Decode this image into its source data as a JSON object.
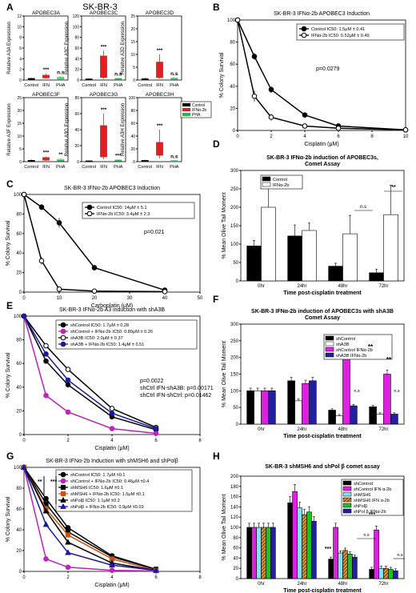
{
  "figure_title": "SK-BR-3",
  "chart_data": [
    {
      "panel": "A",
      "type": "box",
      "legend": [
        {
          "name": "Control",
          "color": "#000000"
        },
        {
          "name": "IFNα-2b",
          "color": "#e02020"
        },
        {
          "name": "PHA",
          "color": "#2bb24c"
        }
      ],
      "subplots": [
        {
          "title": "APOBEC3A",
          "ylabel": "Relative A3A Expression",
          "ylim": [
            0,
            12
          ],
          "yticks": [
            "0",
            "2",
            "4",
            "6",
            "8",
            "10",
            "12"
          ],
          "categories": [
            "Control",
            "IFN",
            "PHA"
          ],
          "medians": [
            0.2,
            0.6,
            0.3
          ],
          "q1": [
            0.1,
            0.4,
            0.2
          ],
          "q3": [
            0.3,
            0.9,
            0.5
          ],
          "max": [
            0.4,
            1.2,
            0.7
          ],
          "min": [
            0.1,
            0.3,
            0.1
          ],
          "annotations": [
            "",
            "***",
            "n.s"
          ]
        },
        {
          "title": "APOBEC3C",
          "ylabel": "Relative A3C Expression",
          "ylim": [
            0,
            120
          ],
          "yticks": [
            "0",
            "20",
            "40",
            "60",
            "80",
            "100",
            "120"
          ],
          "categories": [
            "Control",
            "IFN",
            "PHA"
          ],
          "medians": [
            1,
            10,
            2
          ],
          "q1": [
            0.5,
            5,
            1
          ],
          "q3": [
            2,
            45,
            3
          ],
          "max": [
            3,
            55,
            4
          ],
          "min": [
            0.2,
            2,
            0.5
          ],
          "annotations": [
            "",
            "***",
            "n.s"
          ]
        },
        {
          "title": "APOBEC3D",
          "ylabel": "Relative A3D Expression",
          "ylim": [
            0,
            25
          ],
          "yticks": [
            "0",
            "5",
            "10",
            "15",
            "20",
            "25"
          ],
          "categories": [
            "Control",
            "IFN",
            "PHA"
          ],
          "medians": [
            0.3,
            2,
            0.4
          ],
          "q1": [
            0.1,
            1,
            0.2
          ],
          "q3": [
            0.5,
            7,
            0.7
          ],
          "max": [
            0.8,
            10,
            1
          ],
          "min": [
            0.1,
            0.5,
            0.1
          ],
          "annotations": [
            "",
            "***",
            "n.s"
          ]
        },
        {
          "title": "APOBEC3F",
          "ylabel": "Relative A3F Expression",
          "ylim": [
            0,
            25
          ],
          "yticks": [
            "0",
            "5",
            "10",
            "15",
            "20",
            "25"
          ],
          "categories": [
            "Control",
            "IFN",
            "PHA"
          ],
          "medians": [
            0.3,
            1,
            0.5
          ],
          "q1": [
            0.1,
            0.6,
            0.3
          ],
          "q3": [
            0.5,
            1.6,
            0.9
          ],
          "max": [
            0.8,
            2,
            1.2
          ],
          "min": [
            0.1,
            0.3,
            0.2
          ],
          "annotations": [
            "",
            "***",
            "**"
          ]
        },
        {
          "title": "APOBEC3G",
          "ylabel": "Relative A3G Expression",
          "ylim": [
            0,
            80
          ],
          "yticks": [
            "0",
            "20",
            "40",
            "60",
            "80"
          ],
          "categories": [
            "Control",
            "IFN",
            "PHA"
          ],
          "medians": [
            0.5,
            10,
            1.5
          ],
          "q1": [
            0.3,
            6,
            1
          ],
          "q3": [
            1,
            45,
            2
          ],
          "max": [
            1.5,
            60,
            2.5
          ],
          "min": [
            0.1,
            3,
            0.5
          ],
          "annotations": [
            "",
            "***",
            "***"
          ]
        },
        {
          "title": "APOBEC3H",
          "ylabel": "Relative A3H Expression",
          "ylim": [
            0,
            100
          ],
          "yticks": [
            "0",
            "20",
            "40",
            "60",
            "80",
            "100"
          ],
          "categories": [
            "Control",
            "IFN",
            "PHA"
          ],
          "medians": [
            1,
            25,
            1
          ],
          "q1": [
            0.5,
            10,
            0.5
          ],
          "q3": [
            2,
            30,
            1.5
          ],
          "max": [
            3,
            50,
            2
          ],
          "min": [
            0.2,
            5,
            0.3
          ],
          "annotations": [
            "",
            "***",
            "n.s"
          ]
        }
      ]
    },
    {
      "panel": "B",
      "type": "line",
      "title": "SK-BR-3  IFNα-2b APOBEC3 Induction",
      "xlabel": "Cisplatin (μM)",
      "ylabel": "% Colony Survival",
      "xlim": [
        0,
        10
      ],
      "ylim": [
        0,
        100
      ],
      "xticks": [
        0,
        2,
        4,
        6,
        8,
        10
      ],
      "yticks": [
        0,
        20,
        40,
        60,
        80,
        100
      ],
      "x": [
        0,
        1,
        2,
        4,
        6,
        10
      ],
      "series": [
        {
          "name": "Control IC50: 1.5μM ± 0.41",
          "marker": "filled",
          "values": [
            100,
            67,
            37,
            14,
            4,
            0.5
          ],
          "err": [
            0,
            3,
            3,
            2,
            1,
            0
          ]
        },
        {
          "name": "IFNα-2b IC50: 0.52μM ± 0.49",
          "marker": "open",
          "values": [
            100,
            31,
            12,
            4,
            2,
            0.5
          ],
          "err": [
            0,
            5,
            3,
            1,
            1,
            0
          ]
        }
      ],
      "annotations": [
        "p=0.0279"
      ]
    },
    {
      "panel": "C",
      "type": "line",
      "title": "SK-BR-3 IFNα-2b APOBEC3 Induction",
      "xlabel": "Carboplatin (μM)",
      "ylabel": "% Colony Survival",
      "xlim": [
        0,
        50
      ],
      "ylim": [
        0,
        100
      ],
      "xticks": [
        0,
        10,
        20,
        30,
        40,
        50
      ],
      "yticks": [
        0,
        20,
        40,
        60,
        80,
        100
      ],
      "x": [
        0,
        5,
        10,
        20,
        40
      ],
      "series": [
        {
          "name": "Control IC50: 14μM ± 5.1",
          "marker": "filled",
          "values": [
            100,
            87,
            71,
            25,
            2
          ],
          "err": [
            0,
            3,
            5,
            3,
            1
          ]
        },
        {
          "name": "IFNα-2b IC50: 3.4μM ± 2.3",
          "marker": "open",
          "values": [
            100,
            32,
            3,
            1,
            0.5
          ],
          "err": [
            0,
            4,
            1,
            0,
            0
          ]
        }
      ],
      "annotations": [
        "p=0.021"
      ]
    },
    {
      "panel": "D",
      "type": "bar",
      "title": "SK-BR-3 IFNα-2b induction of APOBEC3s,\nComet Assay",
      "xlabel": "Time post-cisplatin treatment",
      "ylabel": "% Mean Olive Tail Moment",
      "ylim": [
        0,
        300
      ],
      "yticks": [
        0,
        50,
        100,
        150,
        200,
        250,
        300
      ],
      "categories": [
        "0hr",
        "24hr",
        "48hr",
        "72hr"
      ],
      "series": [
        {
          "name": "Control",
          "color": "#000000",
          "values": [
            95,
            122,
            40,
            22
          ],
          "err": [
            15,
            30,
            8,
            10
          ]
        },
        {
          "name": "IFNα-2b",
          "color": "#ffffff",
          "values": [
            200,
            137,
            128,
            180
          ],
          "err": [
            70,
            20,
            50,
            80
          ]
        }
      ],
      "annotations": [
        {
          "category": "48hr",
          "text": "n.s"
        },
        {
          "category": "72hr",
          "text": "**"
        }
      ]
    },
    {
      "panel": "E",
      "type": "line",
      "title": "SK-BR-3 IFNα-2b A3 induction with shA3B",
      "xlabel": "Cisplatin (μM)",
      "ylabel": "% Colony Survival",
      "xlim": [
        0,
        8
      ],
      "ylim": [
        0,
        100
      ],
      "xticks": [
        0,
        2,
        4,
        6,
        8
      ],
      "yticks": [
        0,
        20,
        40,
        60,
        80,
        100
      ],
      "x": [
        0,
        1,
        2,
        4,
        6
      ],
      "series": [
        {
          "name": "shControl IC50: 1.7μM ± 0.28",
          "color": "#000000",
          "marker": "filled",
          "values": [
            100,
            62,
            42,
            15,
            4
          ]
        },
        {
          "name": "shControl + IFNα-2b IC50: 0.89μM ± 0.26",
          "color": "#c020c0",
          "marker": "filled",
          "values": [
            100,
            33,
            19,
            5,
            1
          ]
        },
        {
          "name": "shA3B IC50: 2.0μM ± 0.37",
          "color": "#000000",
          "marker": "open",
          "values": [
            100,
            75,
            55,
            22,
            6
          ]
        },
        {
          "name": "shA3B + IFNα-2b IC50: 1.4μM ± 0.51",
          "color": "#1a1aa0",
          "marker": "filled",
          "values": [
            100,
            68,
            46,
            18,
            5
          ]
        }
      ],
      "annotations": [
        "p=0.0022",
        "shCtrl IFN-shA3B: p=0.00171",
        "shCtrl IFN-shCtrl: p=0.01462"
      ]
    },
    {
      "panel": "F",
      "type": "bar",
      "title": "SK-BR-3 IFNα-2b induction of APOBEC3s with shA3B\nComet Assay",
      "xlabel": "Time post-cisplatin treatment",
      "ylabel": "% Mean Olive Tail Moment",
      "ylim": [
        0,
        300
      ],
      "yticks": [
        0,
        50,
        100,
        150,
        200,
        250,
        300
      ],
      "categories": [
        "0hr",
        "24hr",
        "48hr",
        "72hr"
      ],
      "series": [
        {
          "name": "shControl",
          "color": "#000000",
          "values": [
            100,
            130,
            42,
            52
          ]
        },
        {
          "name": "shA3B",
          "color": "#ffffff",
          "values": [
            100,
            70,
            25,
            30
          ]
        },
        {
          "name": "shControl IFNα-2b",
          "color": "#e020e0",
          "values": [
            100,
            122,
            207,
            150
          ]
        },
        {
          "name": "shA3B IFNα-2b",
          "color": "#2020a0",
          "values": [
            100,
            130,
            55,
            30
          ]
        }
      ],
      "annotations": [
        {
          "category": "48hr",
          "text": "**"
        },
        {
          "category": "48hr",
          "text": "n.s"
        },
        {
          "category": "72hr",
          "text": "**"
        },
        {
          "category": "72hr",
          "text": "n.s"
        }
      ]
    },
    {
      "panel": "G",
      "type": "line",
      "title": "SK-BR-3 IFNα-2b Induction with shMSH6 and shPolβ",
      "xlabel": "Cisplatin (μM)",
      "ylabel": "% Colony Survival",
      "xlim": [
        0,
        8
      ],
      "ylim": [
        0,
        100
      ],
      "xticks": [
        0,
        2,
        4,
        6,
        8
      ],
      "yticks": [
        0,
        20,
        40,
        60,
        80,
        100
      ],
      "x": [
        0,
        1,
        2,
        4,
        6
      ],
      "series": [
        {
          "name": "shControl IC50: 1.7μM ±0.1",
          "color": "#000000",
          "marker": "circle",
          "values": [
            100,
            70,
            42,
            15,
            2
          ]
        },
        {
          "name": "shControl + IFNα-2b IC50: 0.46μM ±0.4",
          "color": "#c020c0",
          "marker": "circle",
          "values": [
            100,
            12,
            4,
            1,
            0.5
          ]
        },
        {
          "name": "shMSH6 IC50: 1.6μM ±0.1",
          "color": "#000000",
          "marker": "square",
          "values": [
            100,
            65,
            38,
            14,
            2
          ]
        },
        {
          "name": "shMSH6 + IFNα-2b IC50: 1.5μM ±0.1",
          "color": "#d05010",
          "marker": "square",
          "values": [
            100,
            60,
            35,
            12,
            1
          ]
        },
        {
          "name": "shPolβ IC50: 1.1μM ±0.2",
          "color": "#000000",
          "marker": "triangle",
          "values": [
            100,
            58,
            28,
            8,
            1
          ]
        },
        {
          "name": "shPolβ + IFNα-2b IC50: 0.9μM ±0.03",
          "color": "#1a1aa0",
          "marker": "triangle",
          "values": [
            100,
            45,
            18,
            6,
            1
          ]
        }
      ],
      "annotations": [
        "**",
        "***"
      ]
    },
    {
      "panel": "H",
      "type": "bar",
      "title": "SK-BR-3 shMSH6 and shPol β comet assay",
      "xlabel": "Time post-cisplatin treatment",
      "ylabel": "% Mean Olive Tail Moment",
      "ylim": [
        0,
        200
      ],
      "yticks": [
        0,
        20,
        40,
        60,
        80,
        100,
        120,
        140,
        160,
        180,
        200
      ],
      "categories": [
        "0hr",
        "24hr",
        "48hr",
        "72hr"
      ],
      "series": [
        {
          "name": "shControl",
          "color": "#000000",
          "values": [
            100,
            148,
            38,
            18
          ]
        },
        {
          "name": "shControl IFN α-2b",
          "color": "#e020e0",
          "values": [
            100,
            170,
            100,
            95
          ]
        },
        {
          "name": "shMSH6",
          "color": "#80e0ff",
          "values": [
            100,
            138,
            50,
            20
          ]
        },
        {
          "name": "shMSH6 IFN α-2b",
          "color": "#e09020",
          "pattern": "stripe",
          "values": [
            100,
            125,
            55,
            20
          ]
        },
        {
          "name": "shPolβ",
          "color": "#20c020",
          "values": [
            100,
            130,
            48,
            18
          ]
        },
        {
          "name": "shPol β IFNα-2b",
          "color": "#2020a0",
          "values": [
            100,
            112,
            42,
            15
          ]
        }
      ],
      "annotations": [
        {
          "category": "48hr",
          "text": "***"
        },
        {
          "category": "48hr",
          "text": "n.s"
        },
        {
          "category": "72hr",
          "text": "***"
        },
        {
          "category": "72hr",
          "text": "n.s"
        }
      ]
    }
  ],
  "panel_labels": [
    "A",
    "B",
    "C",
    "D",
    "E",
    "F",
    "G",
    "H"
  ]
}
